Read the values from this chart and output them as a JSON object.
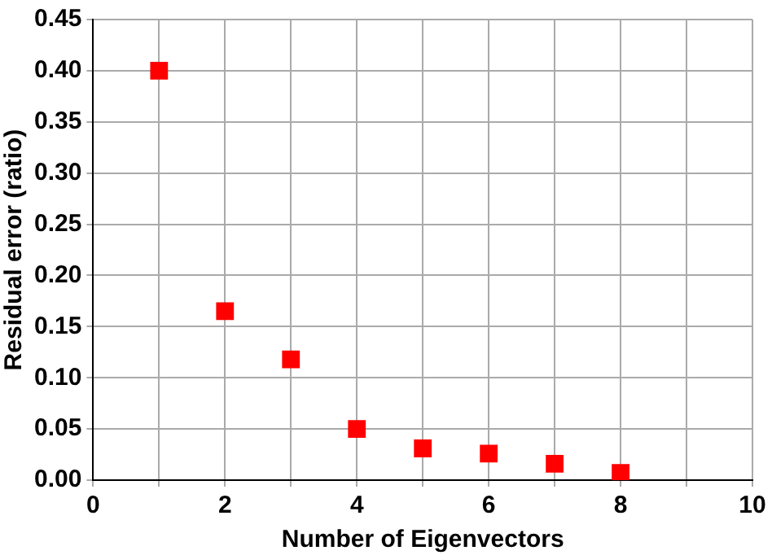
{
  "chart_data": {
    "type": "scatter",
    "xlabel": "Number of Eigenvectors",
    "ylabel": "Residual error (ratio)",
    "x": [
      1,
      2,
      3,
      4,
      5,
      6,
      7,
      8
    ],
    "series": [
      {
        "color": "#ff0000",
        "values": [
          0.4,
          0.165,
          0.118,
          0.05,
          0.031,
          0.026,
          0.016,
          0.007
        ]
      }
    ],
    "xlim": [
      0,
      10
    ],
    "xticks": [
      0,
      {
        "value": 1,
        "label": null
      },
      2,
      {
        "value": 3,
        "label": null
      },
      4,
      {
        "value": 5,
        "label": null
      },
      6,
      {
        "value": 7,
        "label": null
      },
      8,
      {
        "value": 9,
        "label": null
      },
      10
    ],
    "ylim": [
      0,
      0.45
    ],
    "yticks": [
      {
        "value": 0,
        "label": "0.00"
      },
      {
        "value": 0.05,
        "label": "0.05"
      },
      {
        "value": 0.1,
        "label": "0.10"
      },
      {
        "value": 0.15,
        "label": "0.15"
      },
      {
        "value": 0.2,
        "label": "0.20"
      },
      {
        "value": 0.25,
        "label": "0.25"
      },
      {
        "value": 0.3,
        "label": "0.30"
      },
      {
        "value": 0.35,
        "label": "0.35"
      },
      {
        "value": 0.4,
        "label": "0.40"
      },
      {
        "value": 0.45,
        "label": "0.45"
      }
    ],
    "grid": true,
    "legend": false,
    "marker": "square"
  }
}
